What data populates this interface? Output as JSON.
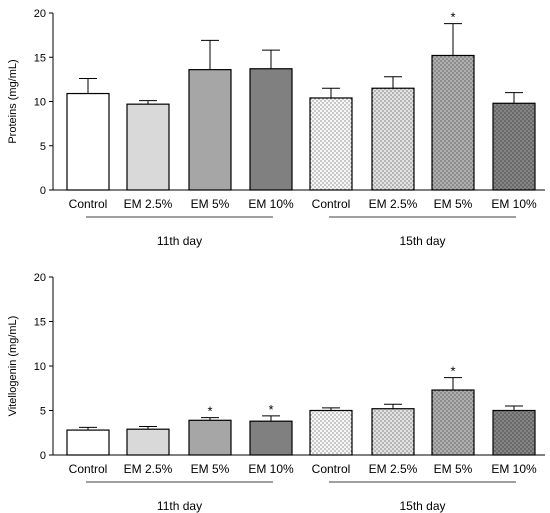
{
  "chart_data": [
    {
      "type": "bar",
      "ylabel": "Proteins (mg/mL)",
      "xlabel": "",
      "title": "",
      "ylim": [
        0,
        20
      ],
      "yticks": [
        0,
        5,
        10,
        15,
        20
      ],
      "groups": [
        {
          "label": "11th day",
          "categories": [
            "Control",
            "EM 2.5%",
            "EM 5%",
            "EM 10%"
          ]
        },
        {
          "label": "15th day",
          "categories": [
            "Control",
            "EM 2.5%",
            "EM 5%",
            "EM 10%"
          ]
        }
      ],
      "categories": [
        "Control",
        "EM 2.5%",
        "EM 5%",
        "EM 10%",
        "Control",
        "EM 2.5%",
        "EM 5%",
        "EM 10%"
      ],
      "values": [
        10.9,
        9.7,
        13.6,
        13.7,
        10.4,
        11.5,
        15.2,
        9.8
      ],
      "errors": [
        1.7,
        0.4,
        3.3,
        2.1,
        1.1,
        1.3,
        3.6,
        1.2
      ],
      "significance": [
        "",
        "",
        "",
        "",
        "",
        "",
        "*",
        ""
      ],
      "fills": [
        "#ffffff",
        "#d9d9d9",
        "#a6a6a6",
        "#808080",
        "#ffffff",
        "#e6e6e6",
        "#b3b3b3",
        "#858585"
      ],
      "dotted": [
        false,
        false,
        false,
        false,
        true,
        true,
        true,
        true
      ],
      "grid": false,
      "legend": "none"
    },
    {
      "type": "bar",
      "ylabel": "Vitellogenin (mg/mL)",
      "xlabel": "",
      "title": "",
      "ylim": [
        0,
        20
      ],
      "yticks": [
        0,
        5,
        10,
        15,
        20
      ],
      "groups": [
        {
          "label": "11th day",
          "categories": [
            "Control",
            "EM 2.5%",
            "EM 5%",
            "EM 10%"
          ]
        },
        {
          "label": "15th day",
          "categories": [
            "Control",
            "EM 2.5%",
            "EM 5%",
            "EM 10%"
          ]
        }
      ],
      "categories": [
        "Control",
        "EM 2.5%",
        "EM 5%",
        "EM 10%",
        "Control",
        "EM 2.5%",
        "EM 5%",
        "EM 10%"
      ],
      "values": [
        2.8,
        2.9,
        3.9,
        3.8,
        5.0,
        5.2,
        7.3,
        5.0
      ],
      "errors": [
        0.3,
        0.3,
        0.3,
        0.6,
        0.3,
        0.5,
        1.4,
        0.5
      ],
      "significance": [
        "",
        "",
        "*",
        "*",
        "",
        "",
        "*",
        ""
      ],
      "fills": [
        "#ffffff",
        "#d9d9d9",
        "#a6a6a6",
        "#808080",
        "#ffffff",
        "#e6e6e6",
        "#b3b3b3",
        "#858585"
      ],
      "dotted": [
        false,
        false,
        false,
        false,
        true,
        true,
        true,
        true
      ],
      "grid": false,
      "legend": "none"
    }
  ]
}
